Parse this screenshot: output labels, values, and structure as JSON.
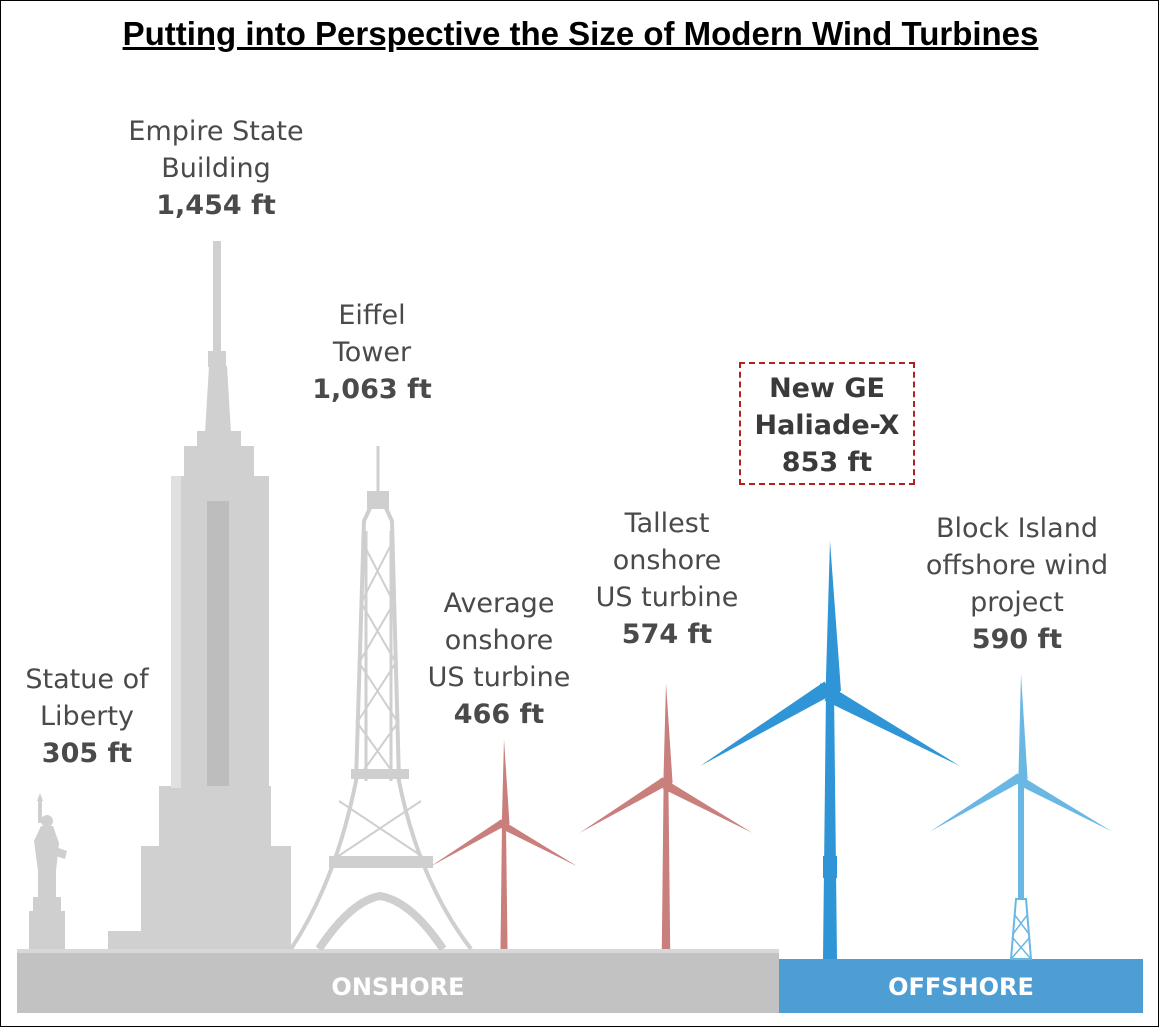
{
  "title": "Putting into Perspective the Size of Modern Wind Turbines",
  "structures": [
    {
      "name": "Statue of\nLiberty",
      "height_label": "305 ft",
      "height_ft": 305
    },
    {
      "name": "Empire State\nBuilding",
      "height_label": "1,454 ft",
      "height_ft": 1454
    },
    {
      "name": "Eiffel\nTower",
      "height_label": "1,063 ft",
      "height_ft": 1063
    },
    {
      "name": "Average\nonshore\nUS turbine",
      "height_label": "466 ft",
      "height_ft": 466
    },
    {
      "name": "Tallest\nonshore\nUS turbine",
      "height_label": "574 ft",
      "height_ft": 574
    },
    {
      "name": "New GE\nHaliade-X",
      "height_label": "853 ft",
      "height_ft": 853
    },
    {
      "name": "Block Island\noffshore wind\nproject",
      "height_label": "590 ft",
      "height_ft": 590
    }
  ],
  "ground": {
    "onshore": "ONSHORE",
    "offshore": "OFFSHORE"
  },
  "colors": {
    "landmark": "#d0d0d0",
    "onshore_turbine": "#c97f7c",
    "ge_turbine": "#2f95d6",
    "block_island_turbine": "#6bb7e4",
    "onshore_ground": "#c2c2c2",
    "offshore_ground": "#4e9dd3",
    "highlight_border": "#b22222"
  }
}
